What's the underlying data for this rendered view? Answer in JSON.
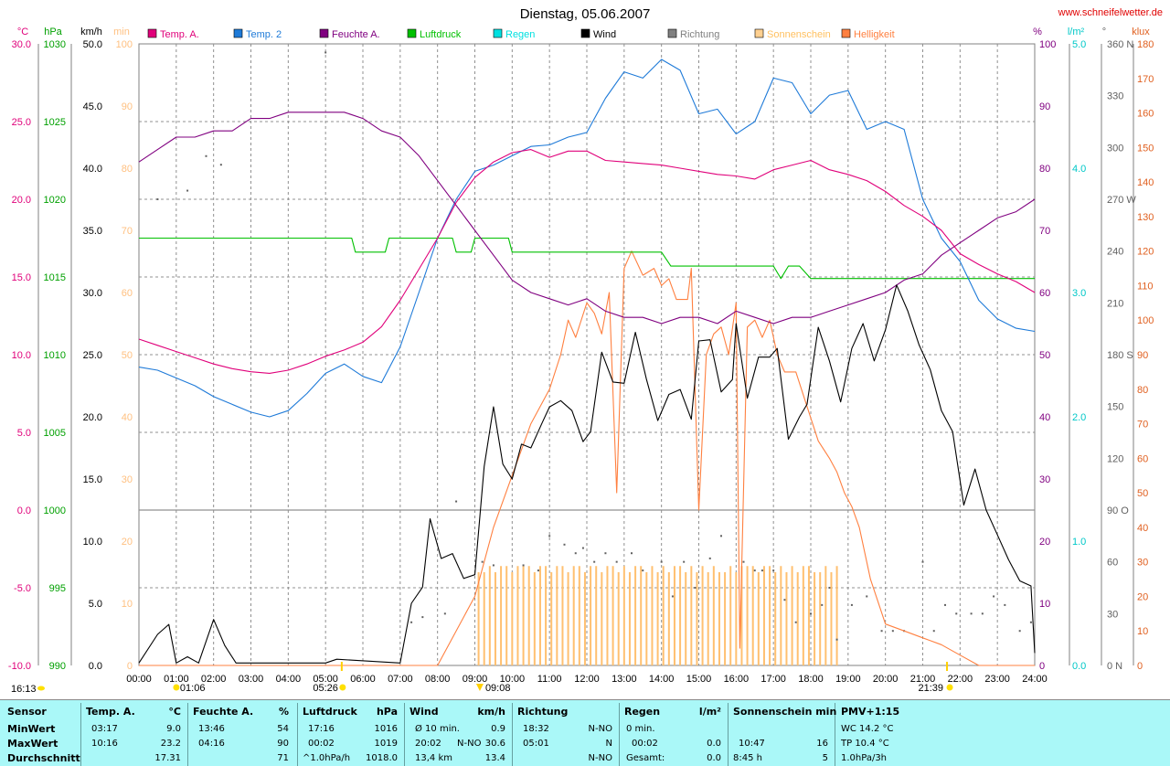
{
  "chart_data": {
    "type": "line",
    "title": "Dienstag, 05.06.2007",
    "source_url": "www.schneifelwetter.de",
    "x_unit": "time of day",
    "x_ticks": [
      "00:00",
      "01:00",
      "02:00",
      "03:00",
      "04:00",
      "05:00",
      "06:00",
      "07:00",
      "08:00",
      "09:00",
      "10:00",
      "11:00",
      "12:00",
      "13:00",
      "14:00",
      "15:00",
      "16:00",
      "17:00",
      "18:00",
      "19:00",
      "20:00",
      "21:00",
      "22:00",
      "23:00",
      "24:00"
    ],
    "axes": {
      "temp": {
        "label": "°C",
        "ticks": [
          "30.0",
          "25.0",
          "20.0",
          "15.0",
          "10.0",
          "5.0",
          "0.0",
          "-5.0",
          "-10.0"
        ],
        "range": [
          -10,
          30
        ],
        "color": "#e0007a"
      },
      "pressure": {
        "label": "hPa",
        "ticks": [
          "1030",
          "1025",
          "1020",
          "1015",
          "1010",
          "1005",
          "1000",
          "995",
          "990"
        ],
        "range": [
          990,
          1030
        ],
        "color": "#00a000"
      },
      "wind": {
        "label": "km/h",
        "ticks": [
          "50.0",
          "45.0",
          "40.0",
          "35.0",
          "30.0",
          "25.0",
          "20.0",
          "15.0",
          "10.0",
          "5.0",
          "0.0"
        ],
        "range": [
          0,
          50
        ],
        "color": "#000000"
      },
      "sunshine": {
        "label": "min",
        "ticks": [
          "100",
          "90",
          "80",
          "70",
          "60",
          "50",
          "40",
          "30",
          "20",
          "10",
          "0"
        ],
        "range": [
          0,
          100
        ],
        "color": "#ffc080"
      },
      "humidity": {
        "label": "%",
        "ticks": [
          "100",
          "90",
          "80",
          "70",
          "60",
          "50",
          "40",
          "30",
          "20",
          "10",
          "0"
        ],
        "range": [
          0,
          100
        ],
        "color": "#800080"
      },
      "rain": {
        "label": "l/m²",
        "ticks": [
          "5.0",
          "4.0",
          "3.0",
          "2.0",
          "1.0",
          "0.0"
        ],
        "range": [
          0,
          5
        ],
        "color": "#00c8c8"
      },
      "direction": {
        "label": "°",
        "ticks": [
          "360 N",
          "330",
          "300",
          "270 W",
          "240",
          "210",
          "180 S",
          "150",
          "120",
          "90 O",
          "60",
          "30",
          "0 N"
        ],
        "range": [
          0,
          360
        ],
        "color": "#606060"
      },
      "brightness": {
        "label": "klux",
        "ticks": [
          "180",
          "170",
          "160",
          "150",
          "140",
          "130",
          "120",
          "110",
          "100",
          "90",
          "80",
          "70",
          "60",
          "50",
          "40",
          "30",
          "20",
          "10",
          "0"
        ],
        "range": [
          0,
          180
        ],
        "color": "#e06020"
      }
    },
    "legend": [
      {
        "name": "Temp. A.",
        "color": "#e0007a"
      },
      {
        "name": "Temp. 2",
        "color": "#1e7ad8"
      },
      {
        "name": "Feuchte A.",
        "color": "#800080"
      },
      {
        "name": "Luftdruck",
        "color": "#00c000"
      },
      {
        "name": "Regen",
        "color": "#00e0e0"
      },
      {
        "name": "Wind",
        "color": "#000000"
      },
      {
        "name": "Richtung",
        "color": "#808080"
      },
      {
        "name": "Sonnenschein",
        "color": "#ffd090"
      },
      {
        "name": "Helligkeit",
        "color": "#ff8040"
      }
    ],
    "series": [
      {
        "name": "Temp. A.",
        "axis": "temp",
        "color": "#e0007a",
        "x": [
          0,
          0.5,
          1,
          1.5,
          2,
          2.5,
          3,
          3.5,
          4,
          4.5,
          5,
          5.5,
          6,
          6.5,
          7,
          7.5,
          8,
          8.5,
          9,
          9.5,
          10,
          10.5,
          11,
          11.5,
          12,
          12.5,
          13,
          13.5,
          14,
          14.5,
          15,
          15.5,
          16,
          16.5,
          17,
          17.5,
          18,
          18.5,
          19,
          19.5,
          20,
          20.5,
          21,
          21.5,
          22,
          22.5,
          23,
          23.5,
          24
        ],
        "y": [
          11.0,
          10.6,
          10.2,
          9.8,
          9.4,
          9.1,
          8.9,
          8.8,
          9.0,
          9.4,
          9.9,
          10.3,
          10.8,
          11.8,
          13.5,
          15.5,
          17.5,
          19.8,
          21.4,
          22.4,
          23.0,
          23.2,
          22.7,
          23.1,
          23.1,
          22.5,
          22.4,
          22.3,
          22.2,
          22.0,
          21.8,
          21.6,
          21.5,
          21.3,
          21.9,
          22.2,
          22.5,
          21.9,
          21.6,
          21.2,
          20.5,
          19.6,
          18.9,
          18.0,
          16.5,
          15.8,
          15.2,
          14.7,
          14.0
        ]
      },
      {
        "name": "Temp. 2",
        "axis": "temp",
        "color": "#1e7ad8",
        "x": [
          0,
          0.5,
          1,
          1.5,
          2,
          2.5,
          3,
          3.5,
          4,
          4.5,
          5,
          5.5,
          6,
          6.5,
          7,
          7.5,
          8,
          8.5,
          9,
          9.5,
          10,
          10.5,
          11,
          11.5,
          12,
          12.5,
          13,
          13.5,
          14,
          14.5,
          15,
          15.5,
          16,
          16.5,
          17,
          17.5,
          18,
          18.5,
          19,
          19.5,
          20,
          20.5,
          21,
          21.5,
          22,
          22.5,
          23,
          23.5,
          24
        ],
        "y": [
          9.2,
          9.0,
          8.5,
          8.0,
          7.3,
          6.8,
          6.3,
          6.0,
          6.4,
          7.5,
          8.8,
          9.4,
          8.6,
          8.2,
          10.5,
          14.0,
          17.5,
          20.0,
          21.8,
          22.2,
          22.8,
          23.4,
          23.5,
          24.0,
          24.3,
          26.5,
          28.2,
          27.8,
          29.0,
          28.3,
          25.5,
          25.8,
          24.2,
          25.0,
          27.8,
          27.5,
          25.5,
          26.7,
          27.0,
          24.5,
          25.0,
          24.5,
          20.0,
          17.5,
          16.0,
          13.5,
          12.3,
          11.7,
          11.5
        ]
      },
      {
        "name": "Feuchte A.",
        "axis": "humidity",
        "color": "#800080",
        "x": [
          0,
          0.5,
          1,
          1.5,
          2,
          2.5,
          3,
          3.5,
          4,
          4.5,
          5,
          5.5,
          6,
          6.5,
          7,
          7.5,
          8,
          8.5,
          9,
          9.5,
          10,
          10.5,
          11,
          11.5,
          12,
          12.5,
          13,
          13.5,
          14,
          14.5,
          15,
          15.5,
          16,
          16.5,
          17,
          17.5,
          18,
          18.5,
          19,
          19.5,
          20,
          20.5,
          21,
          21.5,
          22,
          22.5,
          23,
          23.5,
          24
        ],
        "y": [
          81,
          83,
          85,
          85,
          86,
          86,
          88,
          88,
          89,
          89,
          89,
          89,
          88,
          86,
          85,
          82,
          78,
          74,
          70,
          66,
          62,
          60,
          59,
          58,
          59,
          57,
          56,
          56,
          55,
          56,
          56,
          55,
          57,
          56,
          55,
          56,
          56,
          57,
          58,
          59,
          60,
          62,
          63,
          66,
          68,
          70,
          72,
          73,
          75
        ]
      },
      {
        "name": "Luftdruck",
        "axis": "pressure",
        "color": "#00c000",
        "x": [
          0,
          1,
          2,
          3,
          4,
          5,
          5.7,
          5.8,
          6.6,
          6.7,
          8.4,
          8.5,
          8.9,
          9.0,
          9.9,
          10.0,
          14.0,
          14.25,
          17.0,
          17.2,
          17.4,
          17.7,
          18.0,
          24
        ],
        "y": [
          1017.5,
          1017.5,
          1017.5,
          1017.5,
          1017.5,
          1017.5,
          1017.5,
          1016.6,
          1016.6,
          1017.5,
          1017.5,
          1016.6,
          1016.6,
          1017.5,
          1017.5,
          1016.6,
          1016.6,
          1015.7,
          1015.7,
          1014.9,
          1015.7,
          1015.7,
          1014.9,
          1014.9
        ]
      },
      {
        "name": "Wind",
        "axis": "wind",
        "color": "#000000",
        "x": [
          0,
          0.5,
          0.8,
          1,
          1.3,
          1.6,
          2,
          2.3,
          2.6,
          5,
          5.3,
          7,
          7.3,
          7.6,
          7.8,
          8.1,
          8.4,
          8.7,
          9,
          9.25,
          9.5,
          9.75,
          10,
          10.25,
          10.5,
          10.8,
          11,
          11.3,
          11.6,
          11.9,
          12.1,
          12.4,
          12.7,
          13,
          13.3,
          13.6,
          13.9,
          14.2,
          14.5,
          14.8,
          15,
          15.3,
          15.6,
          15.9,
          16,
          16.3,
          16.6,
          16.9,
          17.1,
          17.4,
          17.7,
          17.9,
          18.2,
          18.5,
          18.8,
          19.1,
          19.4,
          19.7,
          20,
          20.3,
          20.6,
          20.9,
          21.2,
          21.5,
          21.8,
          22.1,
          22.4,
          22.7,
          23,
          23.3,
          23.6,
          23.9,
          24
        ],
        "y": [
          0.2,
          2.5,
          3.3,
          0.2,
          0.7,
          0.2,
          3.7,
          1.6,
          0.2,
          0.2,
          0.5,
          0.2,
          5.0,
          6.3,
          11.8,
          8.6,
          9.0,
          7.0,
          7.3,
          16.0,
          20.8,
          16.2,
          15.0,
          17.8,
          17.5,
          19.5,
          20.8,
          21.3,
          20.5,
          18.0,
          18.8,
          25.2,
          22.8,
          22.7,
          26.8,
          23.0,
          19.7,
          21.8,
          22.2,
          19.8,
          26.1,
          26.2,
          22.0,
          23.0,
          27.5,
          21.5,
          24.8,
          24.8,
          25.5,
          18.2,
          20.0,
          21.0,
          27.2,
          24.5,
          21.2,
          25.5,
          27.5,
          24.5,
          27.0,
          30.6,
          28.5,
          25.8,
          23.8,
          20.5,
          18.8,
          12.9,
          15.8,
          12.5,
          10.5,
          8.5,
          6.8,
          6.4,
          1.0
        ]
      },
      {
        "name": "Helligkeit",
        "axis": "brightness",
        "color": "#ff8040",
        "x": [
          0,
          8,
          9.0,
          9.5,
          10,
          10.5,
          11,
          11.3,
          11.5,
          11.7,
          12,
          12.2,
          12.4,
          12.6,
          12.8,
          13.0,
          13.2,
          13.5,
          13.8,
          14,
          14.2,
          14.4,
          14.7,
          14.8,
          15,
          15.2,
          15.4,
          15.6,
          15.8,
          16,
          16.1,
          16.3,
          16.5,
          16.7,
          16.9,
          17.1,
          17.3,
          17.6,
          17.9,
          18.2,
          18.5,
          18.7,
          18.9,
          19.1,
          19.3,
          19.6,
          20,
          20.5,
          21,
          21.5,
          22,
          22.5,
          24
        ],
        "y": [
          0,
          0,
          20,
          40,
          55,
          70,
          80,
          90,
          100,
          95,
          105,
          102,
          96,
          108,
          50,
          115,
          120,
          113,
          115,
          110,
          112,
          106,
          106,
          115,
          45,
          90,
          96,
          98,
          90,
          105,
          5,
          98,
          100,
          95,
          100,
          90,
          85,
          85,
          75,
          65,
          60,
          56,
          50,
          46,
          40,
          25,
          12,
          10,
          8,
          6,
          3,
          0,
          0
        ]
      },
      {
        "name": "Sonnenschein",
        "axis": "sunshine",
        "color": "#ffc070",
        "x": [
          9.1,
          9.25,
          9.4,
          9.55,
          9.7,
          9.85,
          10,
          10.15,
          10.3,
          10.45,
          10.6,
          10.75,
          10.9,
          11.05,
          11.2,
          11.35,
          11.5,
          11.65,
          11.8,
          11.95,
          12.1,
          12.25,
          12.4,
          12.55,
          12.7,
          12.85,
          13,
          13.15,
          13.3,
          13.45,
          13.6,
          13.75,
          13.9,
          14.05,
          14.2,
          14.35,
          14.5,
          14.65,
          14.8,
          14.95,
          15.1,
          15.25,
          15.4,
          15.55,
          15.7,
          15.85,
          16,
          16.15,
          16.3,
          16.45,
          16.6,
          16.75,
          16.9,
          17.05,
          17.2,
          17.35,
          17.5,
          17.65,
          17.8,
          17.95,
          18.1,
          18.25,
          18.4,
          18.55,
          18.7
        ],
        "y": [
          15,
          15,
          16,
          15,
          16,
          16,
          15,
          16,
          16,
          16,
          15,
          16,
          16,
          15,
          16,
          16,
          15,
          16,
          16,
          15,
          16,
          16,
          15,
          16,
          16,
          15,
          16,
          15,
          16,
          16,
          15,
          16,
          15,
          16,
          15,
          16,
          16,
          15,
          16,
          15,
          16,
          15,
          16,
          15,
          15,
          16,
          15,
          16,
          16,
          16,
          15,
          16,
          16,
          15,
          16,
          15,
          16,
          15,
          16,
          16,
          15,
          15,
          16,
          15,
          16
        ]
      },
      {
        "name": "Richtung",
        "axis": "direction",
        "color": "#606060",
        "x": [
          0.5,
          1.3,
          1.8,
          2.2,
          5,
          7.3,
          7.6,
          8.2,
          8.5,
          9.2,
          9.5,
          10.3,
          10.7,
          11,
          11.4,
          11.7,
          11.9,
          12.2,
          12.5,
          12.8,
          13.2,
          13.5,
          14.0,
          14.3,
          14.6,
          14.9,
          15.3,
          15.6,
          16.2,
          16.5,
          16.7,
          17.0,
          17.3,
          17.6,
          18.0,
          18.3,
          18.5,
          18.7,
          19.1,
          19.5,
          19.9,
          20.2,
          20.5,
          21.0,
          21.3,
          21.6,
          21.9,
          22.3,
          22.6,
          22.9,
          23.2,
          23.6,
          23.9
        ],
        "y": [
          270,
          275,
          295,
          290,
          355,
          25,
          28,
          30,
          95,
          60,
          58,
          58,
          55,
          75,
          70,
          65,
          68,
          60,
          65,
          60,
          65,
          55,
          60,
          40,
          60,
          45,
          62,
          75,
          60,
          55,
          55,
          55,
          38,
          25,
          30,
          35,
          45,
          15,
          35,
          40,
          20,
          20,
          20,
          60,
          20,
          35,
          30,
          30,
          30,
          40,
          35,
          20,
          25
        ]
      }
    ],
    "markers": {
      "moonrise": "01:06",
      "sunrise": "05:26",
      "moonset": "09:08",
      "sunset": "21:39",
      "time": "16:13"
    }
  },
  "stats": {
    "sensor": {
      "header": "Sensor",
      "rows": [
        "MinWert",
        "MaxWert",
        "Durchschnitt"
      ]
    },
    "temp": {
      "header": "Temp. A.",
      "unit": "°C",
      "min_time": "03:17",
      "min": "9.0",
      "max_time": "10:16",
      "max": "23.2",
      "avg": "17.31"
    },
    "humidity": {
      "header": "Feuchte A.",
      "unit": "%",
      "min_time": "13:46",
      "min": "54",
      "max_time": "04:16",
      "max": "90",
      "avg": "71"
    },
    "pressure": {
      "header": "Luftdruck",
      "unit": "hPa",
      "min_time": "17:16",
      "min": "1016",
      "max_time": "00:02",
      "max": "1019",
      "trend": "^1.0hPa/h",
      "avg": "1018.0"
    },
    "wind": {
      "header": "Wind",
      "unit": "km/h",
      "r1_label": "Ø 10 min.",
      "r1_value": "0.9",
      "r2_time": "20:02",
      "r2_dir": "N-NO",
      "r2_value": "30.6",
      "r3_label": "13,4 km",
      "r3_value": "13.4"
    },
    "direction": {
      "header": "Richtung",
      "r1_time": "18:32",
      "r1": "N-NO",
      "r2_time": "05:01",
      "r2": "N",
      "r3": "N-NO"
    },
    "rain": {
      "header": "Regen",
      "unit": "l/m²",
      "r1": "0 min.",
      "r2_time": "00:02",
      "r2": "0.0",
      "r3_label": "Gesamt:",
      "r3": "0.0"
    },
    "sun": {
      "header": "Sonnenschein min",
      "r1": "",
      "r2_time": "10:47",
      "r2": "16",
      "r3_label": "8:45 h",
      "r3": "5"
    },
    "pmv": {
      "header": "PMV+1:15",
      "r1": "WC 14.2 °C",
      "r2": "TP 10.4 °C",
      "r3": "1.0hPa/3h"
    }
  }
}
